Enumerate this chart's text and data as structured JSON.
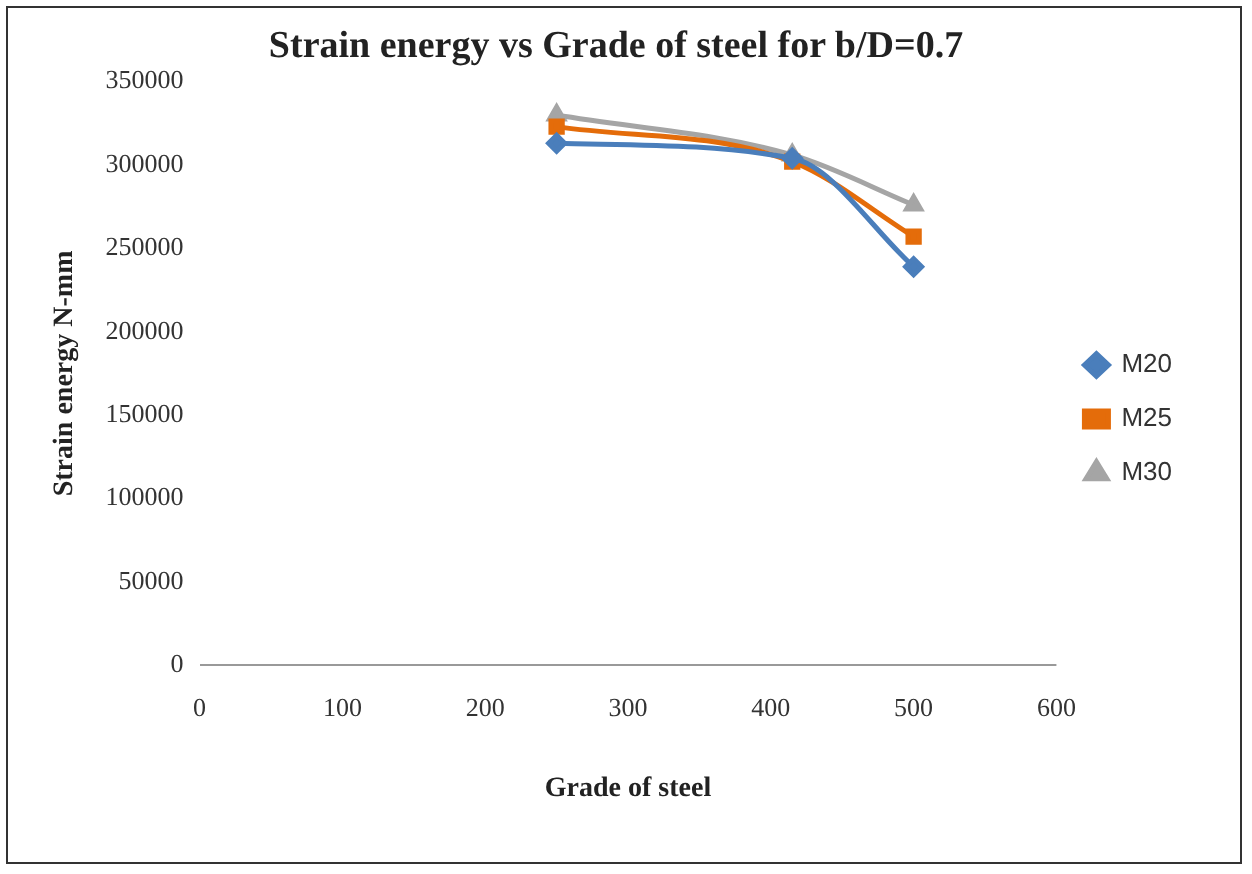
{
  "chart_data": {
    "type": "line",
    "title": "Strain energy vs Grade of steel for b/D=0.7",
    "xlabel": "Grade of steel",
    "ylabel": "Strain energy N-mm",
    "x": [
      250,
      415,
      500
    ],
    "series": [
      {
        "name": "M20",
        "color": "#4a7ebb",
        "marker": "diamond",
        "values": [
          313000,
          304000,
          239000
        ]
      },
      {
        "name": "M25",
        "color": "#e46c0a",
        "marker": "square",
        "values": [
          323000,
          302000,
          257000
        ]
      },
      {
        "name": "M30",
        "color": "#a5a5a5",
        "marker": "triangle",
        "values": [
          330000,
          306000,
          276000
        ]
      }
    ],
    "xlim": [
      0,
      600
    ],
    "xticks": [
      0,
      100,
      200,
      300,
      400,
      500,
      600
    ],
    "ylim": [
      0,
      350000
    ],
    "yticks": [
      0,
      50000,
      100000,
      150000,
      200000,
      250000,
      300000,
      350000
    ],
    "grid": false,
    "legend": "right"
  }
}
